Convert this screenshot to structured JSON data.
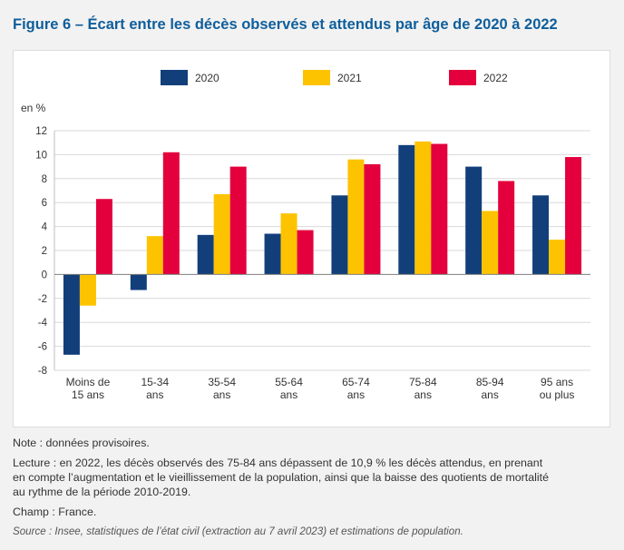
{
  "title": "Figure 6 – Écart entre les décès observés et attendus par âge de 2020 à 2022",
  "chart_data": {
    "type": "bar",
    "ylabel": "en %",
    "ylim": [
      -8,
      12
    ],
    "yticks": [
      12,
      10,
      8,
      6,
      4,
      2,
      0,
      -2,
      -4,
      -6,
      -8
    ],
    "grid": true,
    "legend_position": "top",
    "categories": [
      [
        "Moins de",
        "15 ans"
      ],
      [
        "15-34",
        "ans"
      ],
      [
        "35-54",
        "ans"
      ],
      [
        "55-64",
        "ans"
      ],
      [
        "65-74",
        "ans"
      ],
      [
        "75-84",
        "ans"
      ],
      [
        "85-94",
        "ans"
      ],
      [
        "95 ans",
        "ou plus"
      ]
    ],
    "series": [
      {
        "name": "2020",
        "color": "#123f7a",
        "values": [
          -6.7,
          -1.3,
          3.3,
          3.4,
          6.6,
          10.8,
          9.0,
          6.6
        ]
      },
      {
        "name": "2021",
        "color": "#fdc300",
        "values": [
          -2.6,
          3.2,
          6.7,
          5.1,
          9.6,
          11.1,
          5.3,
          2.9
        ]
      },
      {
        "name": "2022",
        "color": "#e3003d",
        "values": [
          6.3,
          10.2,
          9.0,
          3.7,
          9.2,
          10.9,
          7.8,
          9.8
        ]
      }
    ]
  },
  "notes": {
    "note": "Note : données provisoires.",
    "lecture_lines": [
      "Lecture : en 2022, les décès observés des 75-84 ans dépassent de 10,9 % les décès attendus, en prenant",
      "en compte l’augmentation et le vieillissement de la population, ainsi que la baisse des quotients de mortalité",
      "au rythme de la période 2010-2019."
    ],
    "champ": "Champ : France.",
    "source": "Source : Insee, statistiques de l’état civil (extraction au 7 avril 2023) et estimations de population."
  }
}
